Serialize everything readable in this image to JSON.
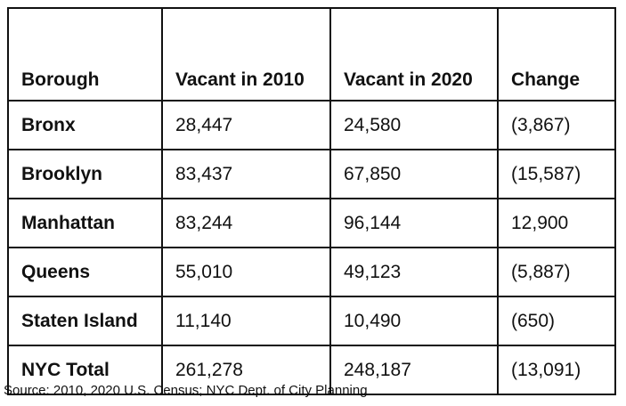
{
  "table": {
    "headers": [
      "Borough",
      "Vacant in 2010",
      "Vacant in 2020",
      "Change"
    ],
    "rows": [
      {
        "borough": "Bronx",
        "vacant_2010": "28,447",
        "vacant_2020": "24,580",
        "change": "(3,867)"
      },
      {
        "borough": "Brooklyn",
        "vacant_2010": "83,437",
        "vacant_2020": "67,850",
        "change": "(15,587)"
      },
      {
        "borough": "Manhattan",
        "vacant_2010": "83,244",
        "vacant_2020": "96,144",
        "change": "12,900"
      },
      {
        "borough": "Queens",
        "vacant_2010": "55,010",
        "vacant_2020": "49,123",
        "change": "(5,887)"
      },
      {
        "borough": "Staten Island",
        "vacant_2010": "11,140",
        "vacant_2020": "10,490",
        "change": "(650)"
      },
      {
        "borough": "NYC Total",
        "vacant_2010": "261,278",
        "vacant_2020": "248,187",
        "change": "(13,091)"
      }
    ]
  },
  "source": "Source: 2010, 2020 U.S. Census; NYC Dept. of City Planning"
}
